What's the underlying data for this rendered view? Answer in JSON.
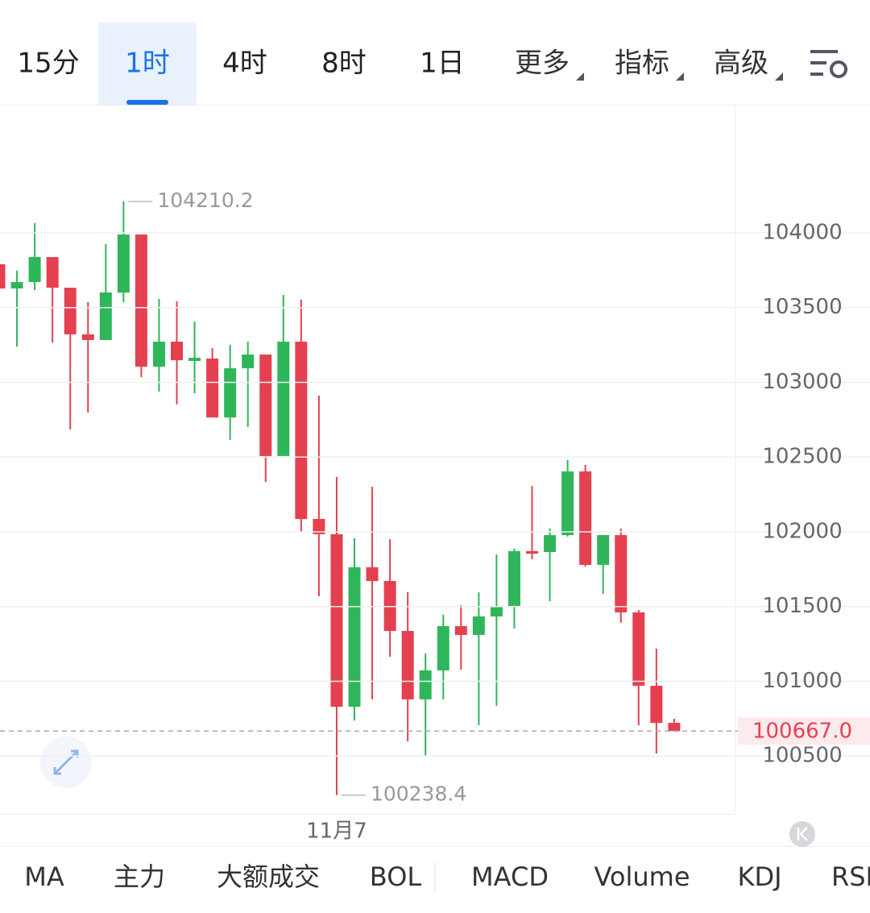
{
  "tabs": [
    "15分",
    "1时",
    "4时",
    "8时",
    "1日"
  ],
  "active_tab": "1时",
  "menus": [
    "更多",
    "指标",
    "高级"
  ],
  "indicator_tabs": [
    "MA",
    "主力",
    "大额成交",
    "BOL",
    "MACD",
    "Volume",
    "KDJ",
    "RSI"
  ],
  "chart_data": {
    "type": "candlestick",
    "categories": [
      null,
      null,
      null,
      null,
      null,
      null,
      null,
      null,
      null,
      null,
      null,
      null,
      null,
      null,
      null,
      null,
      null,
      null,
      null,
      "11月7",
      null,
      null,
      null,
      null,
      null,
      null,
      null,
      null,
      null,
      null,
      null,
      null,
      null,
      null,
      null,
      null,
      null,
      null,
      null
    ],
    "open": [
      103790,
      103628,
      103671,
      103838,
      103633,
      103321,
      103283,
      103601,
      103989,
      103105,
      103272,
      103143,
      103159,
      102765,
      103094,
      103186,
      102507,
      103272,
      102086,
      101984,
      100830,
      101763,
      101671,
      101337,
      100879,
      101073,
      101369,
      101310,
      101434,
      101504,
      101871,
      101865,
      101978,
      102404,
      101779,
      101978,
      101461,
      100970,
      100722
    ],
    "close": [
      103628,
      103671,
      103838,
      103633,
      103321,
      103283,
      103601,
      103989,
      103105,
      103272,
      103148,
      103164,
      102765,
      103094,
      103186,
      102507,
      103272,
      102086,
      101984,
      100830,
      101763,
      101671,
      101337,
      100879,
      101073,
      101369,
      101310,
      101434,
      101504,
      101871,
      101854,
      101978,
      102404,
      101779,
      101978,
      101461,
      100970,
      100722,
      100667
    ],
    "high": [
      103833,
      103747,
      104065,
      103838,
      103633,
      103536,
      103925,
      104210.2,
      103989,
      103558,
      103542,
      103407,
      103229,
      103251,
      103272,
      103186,
      103585,
      103553,
      102911,
      102367,
      101957,
      102302,
      101951,
      101596,
      101186,
      101445,
      101509,
      101596,
      101849,
      101887,
      102307,
      102022,
      102480,
      102447,
      101978,
      102022,
      101477,
      101218,
      100749
    ],
    "low": [
      103456,
      103240,
      103617,
      103267,
      102685,
      102798,
      103283,
      103536,
      103035,
      102938,
      102852,
      102927,
      102765,
      102615,
      102701,
      102334,
      102507,
      102000,
      101569,
      100238.4,
      100738,
      100879,
      101164,
      100598,
      100501,
      100879,
      101078,
      100706,
      100836,
      101353,
      101817,
      101536,
      101968,
      101768,
      101585,
      101391,
      100706,
      100517,
      100667
    ],
    "up_color": "#2fb65a",
    "down_color": "#e5404f",
    "ylim": [
      100113,
      104857
    ],
    "yticks": [
      100500,
      101000,
      101500,
      102000,
      102500,
      103000,
      103500,
      104000
    ],
    "grid": true,
    "last_price": {
      "value": 100667,
      "label": "100667.0"
    }
  }
}
